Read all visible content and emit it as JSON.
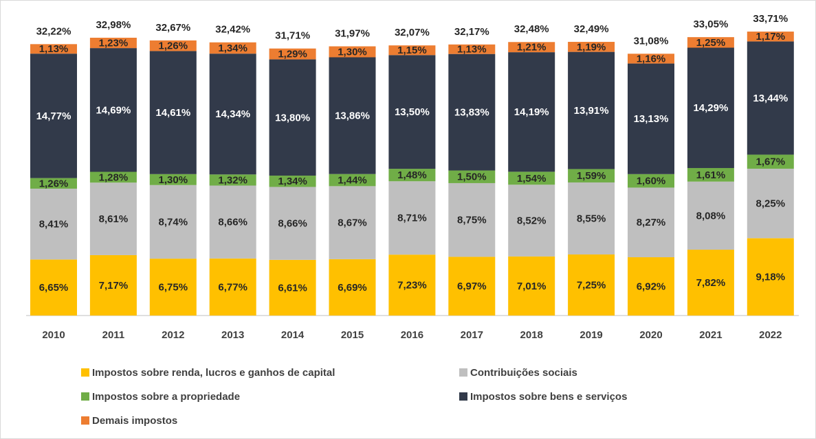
{
  "chart_data": {
    "type": "stacked_bar",
    "categories": [
      "2010",
      "2011",
      "2012",
      "2013",
      "2014",
      "2015",
      "2016",
      "2017",
      "2018",
      "2019",
      "2020",
      "2021",
      "2022"
    ],
    "series": [
      {
        "name": "Impostos sobre renda, lucros e ganhos de capital",
        "color": "#FFC000",
        "values": [
          6.65,
          7.17,
          6.75,
          6.77,
          6.61,
          6.69,
          7.23,
          6.97,
          7.01,
          7.25,
          6.92,
          7.82,
          9.18
        ],
        "value_labels": [
          "6,65%",
          "7,17%",
          "6,75%",
          "6,77%",
          "6,61%",
          "6,69%",
          "7,23%",
          "6,97%",
          "7,01%",
          "7,25%",
          "6,92%",
          "7,82%",
          "9,18%"
        ]
      },
      {
        "name": "Contribuições sociais",
        "color": "#BFBFBF",
        "values": [
          8.41,
          8.61,
          8.74,
          8.66,
          8.66,
          8.67,
          8.71,
          8.75,
          8.52,
          8.55,
          8.27,
          8.08,
          8.25
        ],
        "value_labels": [
          "8,41%",
          "8,61%",
          "8,74%",
          "8,66%",
          "8,66%",
          "8,67%",
          "8,71%",
          "8,75%",
          "8,52%",
          "8,55%",
          "8,27%",
          "8,08%",
          "8,25%"
        ]
      },
      {
        "name": "Impostos sobre a propriedade",
        "color": "#70AD47",
        "values": [
          1.26,
          1.28,
          1.3,
          1.32,
          1.34,
          1.44,
          1.48,
          1.5,
          1.54,
          1.59,
          1.6,
          1.61,
          1.67
        ],
        "value_labels": [
          "1,26%",
          "1,28%",
          "1,30%",
          "1,32%",
          "1,34%",
          "1,44%",
          "1,48%",
          "1,50%",
          "1,54%",
          "1,59%",
          "1,60%",
          "1,61%",
          "1,67%"
        ]
      },
      {
        "name": "Impostos sobre bens e serviços",
        "color": "#323A4A",
        "values": [
          14.77,
          14.69,
          14.61,
          14.34,
          13.8,
          13.86,
          13.5,
          13.83,
          14.19,
          13.91,
          13.13,
          14.29,
          13.44
        ],
        "value_labels": [
          "14,77%",
          "14,69%",
          "14,61%",
          "14,34%",
          "13,80%",
          "13,86%",
          "13,50%",
          "13,83%",
          "14,19%",
          "13,91%",
          "13,13%",
          "14,29%",
          "13,44%"
        ]
      },
      {
        "name": "Demais impostos",
        "color": "#ED7D31",
        "values": [
          1.13,
          1.23,
          1.26,
          1.34,
          1.29,
          1.3,
          1.15,
          1.13,
          1.21,
          1.19,
          1.16,
          1.25,
          1.17
        ],
        "value_labels": [
          "1,13%",
          "1,23%",
          "1,26%",
          "1,34%",
          "1,29%",
          "1,30%",
          "1,15%",
          "1,13%",
          "1,21%",
          "1,19%",
          "1,16%",
          "1,25%",
          "1,17%"
        ]
      }
    ],
    "totals": [
      32.22,
      32.98,
      32.67,
      32.42,
      31.71,
      31.97,
      32.07,
      32.17,
      32.48,
      32.49,
      31.08,
      33.05,
      33.71
    ],
    "total_labels": [
      "32,22%",
      "32,98%",
      "32,67%",
      "32,42%",
      "31,71%",
      "31,97%",
      "32,07%",
      "32,17%",
      "32,48%",
      "32,49%",
      "31,08%",
      "33,05%",
      "33,71%"
    ]
  }
}
